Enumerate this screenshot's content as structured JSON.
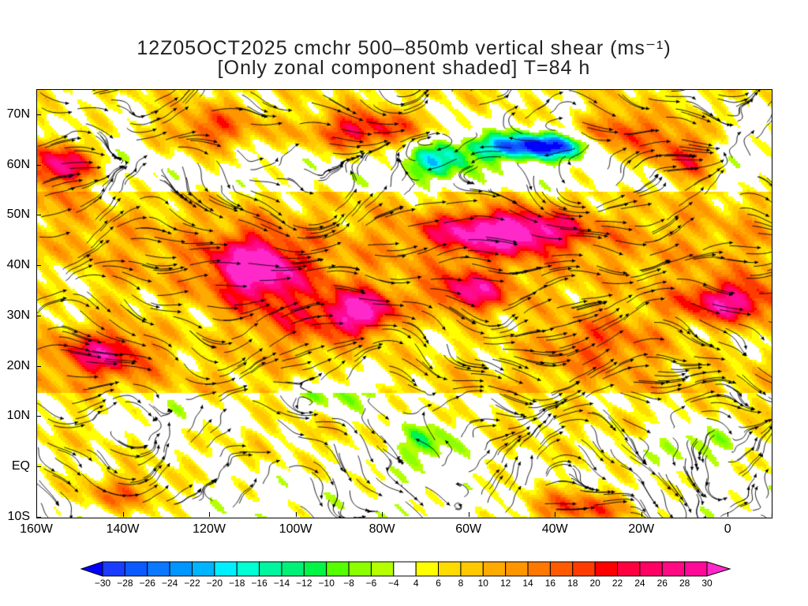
{
  "title": {
    "line1": "12Z05OCT2025 cmchr 500–850mb vertical shear (ms⁻¹)",
    "line2": "[Only zonal component shaded] T=84 h"
  },
  "chart_data": {
    "type": "heatmap",
    "subtype": "map with streamlines",
    "x_range_lon": [
      -160,
      10
    ],
    "y_range_lat": [
      -10,
      75
    ],
    "x_ticks": [
      {
        "value": -160,
        "label": "160W"
      },
      {
        "value": -140,
        "label": "140W"
      },
      {
        "value": -120,
        "label": "120W"
      },
      {
        "value": -100,
        "label": "100W"
      },
      {
        "value": -80,
        "label": "80W"
      },
      {
        "value": -60,
        "label": "60W"
      },
      {
        "value": -40,
        "label": "40W"
      },
      {
        "value": -20,
        "label": "20W"
      },
      {
        "value": 0,
        "label": "0"
      }
    ],
    "y_ticks": [
      {
        "value": 70,
        "label": "70N"
      },
      {
        "value": 60,
        "label": "60N"
      },
      {
        "value": 50,
        "label": "50N"
      },
      {
        "value": 40,
        "label": "40N"
      },
      {
        "value": 30,
        "label": "30N"
      },
      {
        "value": 20,
        "label": "20N"
      },
      {
        "value": 10,
        "label": "10N"
      },
      {
        "value": 0,
        "label": "EQ"
      },
      {
        "value": -10,
        "label": "10S"
      }
    ],
    "colorbar": {
      "labels": [
        "-30",
        "-28",
        "-26",
        "-24",
        "-22",
        "-20",
        "-18",
        "-16",
        "-14",
        "-12",
        "-10",
        "-8",
        "-6",
        "-4",
        "4",
        "6",
        "8",
        "10",
        "12",
        "14",
        "16",
        "18",
        "20",
        "22",
        "24",
        "26",
        "28",
        "30"
      ],
      "bounds": [
        -30,
        -28,
        -26,
        -24,
        -22,
        -20,
        -18,
        -16,
        -14,
        -12,
        -10,
        -8,
        -6,
        -4,
        4,
        6,
        8,
        10,
        12,
        14,
        16,
        18,
        20,
        22,
        24,
        26,
        28,
        30
      ],
      "colors": [
        "#1a3cff",
        "#0a5aff",
        "#0a78ff",
        "#0096ff",
        "#00b4ff",
        "#00f0ff",
        "#00ffd2",
        "#00f5a0",
        "#00f078",
        "#00f546",
        "#55ff00",
        "#8cff00",
        "#b4ff00",
        "#ffffff",
        "#ffff00",
        "#ffdc00",
        "#ffc800",
        "#ffaa00",
        "#ff9600",
        "#ff7800",
        "#ff5a00",
        "#ff3c00",
        "#ff0000",
        "#ff0040",
        "#ff0064",
        "#ff0a82",
        "#ff0a96"
      ],
      "under_color": "#0000ff",
      "over_color": "#ff28c8"
    }
  }
}
